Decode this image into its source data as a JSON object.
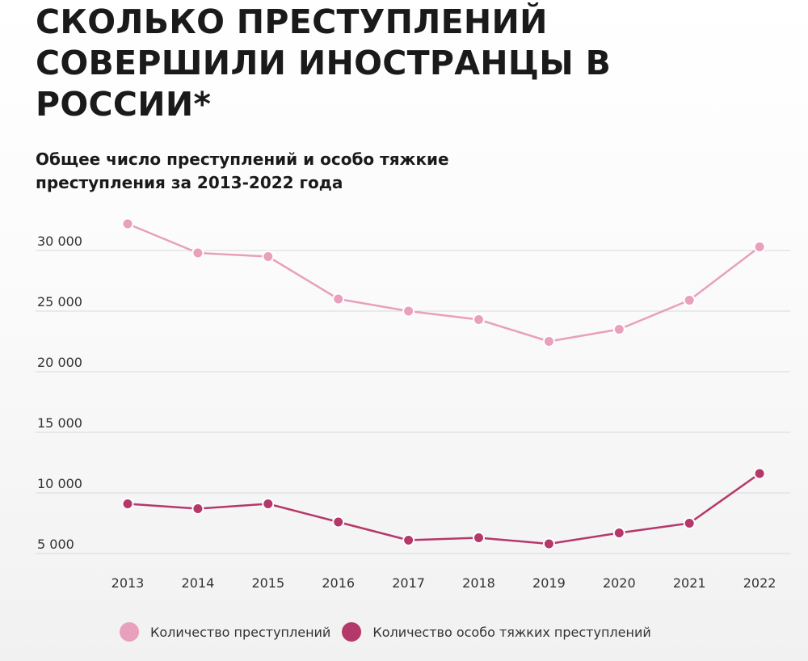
{
  "header": {
    "title": "СКОЛЬКО ПРЕСТУПЛЕНИЙ СОВЕРШИЛИ ИНОСТРАНЦЫ В РОССИИ*",
    "subtitle": "Общее число преступлений и особо тяжкие преступления за 2013-2022 года"
  },
  "colors": {
    "series_total": "#e8a0bc",
    "series_grave": "#b5386a",
    "grid": "#d9d9d9"
  },
  "chart_data": {
    "type": "line",
    "title": "СКОЛЬКО ПРЕСТУПЛЕНИЙ СОВЕРШИЛИ ИНОСТРАНЦЫ В РОССИИ*",
    "subtitle": "Общее число преступлений и особо тяжкие преступления за 2013-2022 года",
    "x": [
      "2013",
      "2014",
      "2015",
      "2016",
      "2017",
      "2018",
      "2019",
      "2020",
      "2021",
      "2022"
    ],
    "series": [
      {
        "name": "Количество преступлений",
        "color": "#e8a0bc",
        "values": [
          32200,
          29800,
          29500,
          26000,
          25000,
          24300,
          22500,
          23500,
          25900,
          30300
        ]
      },
      {
        "name": "Количество особо тяжких преступлений",
        "color": "#b5386a",
        "values": [
          9100,
          8700,
          9100,
          7600,
          6100,
          6300,
          5800,
          6700,
          7500,
          11600
        ]
      }
    ],
    "y_ticks": [
      5000,
      10000,
      15000,
      20000,
      25000,
      30000
    ],
    "y_tick_labels": [
      "5 000",
      "10 000",
      "15 000",
      "20 000",
      "25 000",
      "30 000"
    ],
    "xlabel": "",
    "ylabel": "",
    "ylim": [
      4000,
      33000
    ],
    "grid": true,
    "legend_position": "bottom"
  }
}
